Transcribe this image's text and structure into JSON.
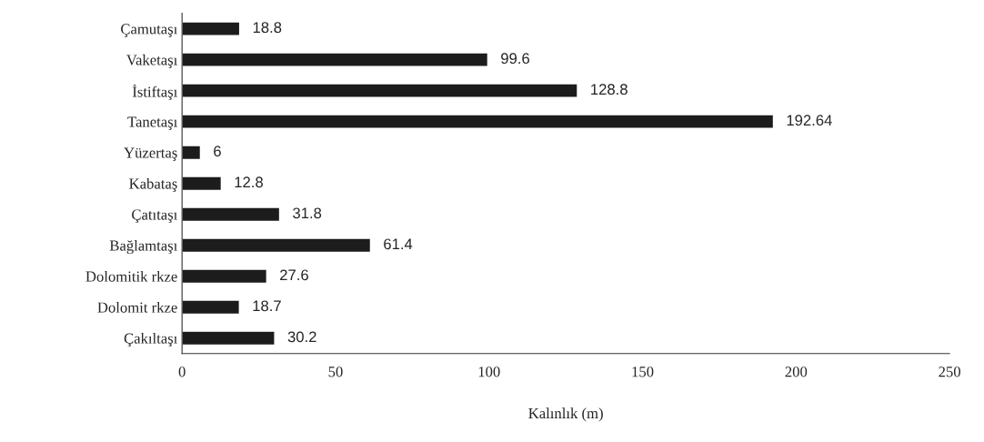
{
  "chart_data": {
    "type": "bar",
    "orientation": "horizontal",
    "xlabel": "Kalınlık (m)",
    "categories": [
      "Çamutaşı",
      "Vaketaşı",
      "İstiftaşı",
      "Tanetaşı",
      "Yüzertaş",
      "Kabataş",
      "Çatıtaşı",
      "Bağlamtaşı",
      "Dolomitik rkze",
      "Dolomit rkze",
      "Çakıltaşı"
    ],
    "values": [
      18.8,
      99.6,
      128.8,
      192.64,
      6,
      12.8,
      31.8,
      61.4,
      27.6,
      18.7,
      30.2
    ],
    "color": "#1c1c1c",
    "data_labels": true,
    "grid": false,
    "legend": false,
    "xlim": [
      0,
      250
    ],
    "xticks": [
      0,
      50,
      100,
      150,
      200,
      250
    ]
  }
}
